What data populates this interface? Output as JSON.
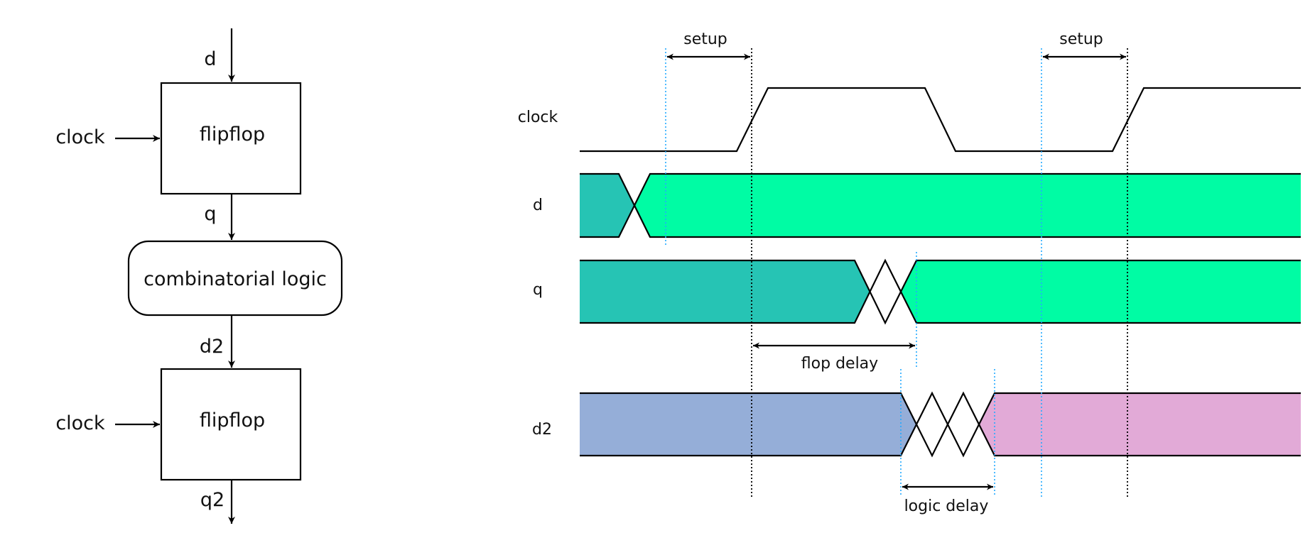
{
  "block_diagram": {
    "input_label": "d",
    "top_box_label": "flipflop",
    "top_clock_label": "clock",
    "q_label": "q",
    "logic_label": "combinatorial logic",
    "d2_label": "d2",
    "bottom_box_label": "flipflop",
    "bottom_clock_label": "clock",
    "output_label": "q2"
  },
  "timing_diagram": {
    "signals": {
      "clock": "clock",
      "d": "d",
      "q": "q",
      "d2": "d2"
    },
    "annotations": {
      "setup_1": "setup",
      "setup_2": "setup",
      "flop_delay": "flop delay",
      "logic_delay": "logic delay"
    },
    "colors": {
      "old_value": "#26c4b4",
      "new_value": "#00fca4",
      "d2_old": "#95aed8",
      "d2_new": "#e2aad7",
      "setup_line": "#22aaff",
      "edge_line": "#000000"
    }
  }
}
